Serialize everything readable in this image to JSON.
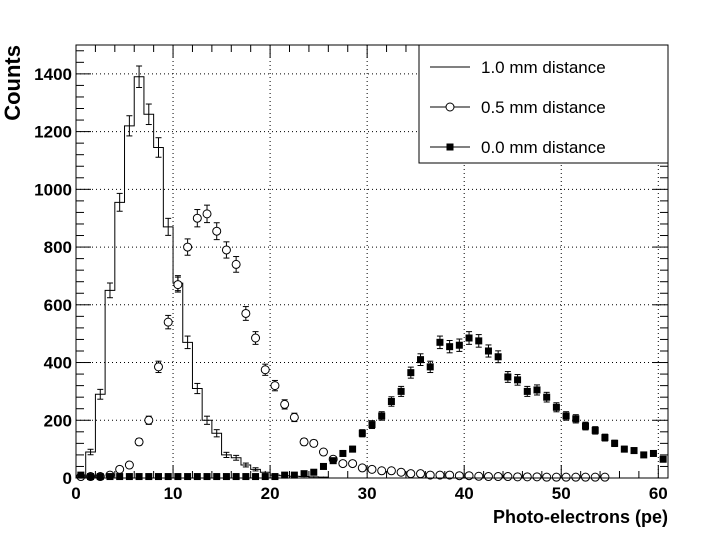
{
  "chart_data": {
    "type": "line",
    "title": "",
    "xlabel": "Photo-electrons (pe)",
    "ylabel": "Counts",
    "xlim": [
      0,
      61
    ],
    "ylim": [
      0,
      1500
    ],
    "bin_width": 1,
    "grid": true,
    "legend_position": "top-right",
    "x_ticks": [
      0,
      10,
      20,
      30,
      40,
      50,
      60
    ],
    "y_ticks": [
      0,
      200,
      400,
      600,
      800,
      1000,
      1200,
      1400
    ],
    "series": [
      {
        "name": "1.0 mm distance",
        "marker": "none",
        "color": "#000000",
        "x": [
          1,
          2,
          3,
          4,
          5,
          6,
          7,
          8,
          9,
          10,
          11,
          12,
          13,
          14,
          15,
          16,
          17,
          18,
          19,
          20,
          21,
          22,
          23,
          24,
          25
        ],
        "y": [
          90,
          290,
          650,
          955,
          1220,
          1390,
          1260,
          1145,
          870,
          675,
          470,
          310,
          200,
          155,
          80,
          70,
          45,
          30,
          20,
          10,
          8,
          6,
          5,
          4,
          3
        ]
      },
      {
        "name": "0.5 mm distance",
        "marker": "open-circle",
        "color": "#000000",
        "x": [
          0,
          1,
          2,
          3,
          4,
          5,
          6,
          7,
          8,
          9,
          10,
          11,
          12,
          13,
          14,
          15,
          16,
          17,
          18,
          19,
          20,
          21,
          22,
          23,
          24,
          25,
          26,
          27,
          28,
          29,
          30,
          31,
          32,
          33,
          34,
          35,
          36,
          37,
          38,
          39,
          40,
          41,
          42,
          43,
          44,
          45,
          46,
          47,
          48,
          49,
          50,
          51,
          52,
          53,
          54
        ],
        "y": [
          5,
          5,
          5,
          10,
          30,
          45,
          125,
          200,
          385,
          540,
          670,
          800,
          900,
          915,
          855,
          790,
          740,
          570,
          485,
          375,
          320,
          255,
          210,
          125,
          120,
          90,
          65,
          50,
          50,
          35,
          30,
          25,
          25,
          20,
          15,
          15,
          10,
          10,
          10,
          8,
          8,
          6,
          5,
          5,
          5,
          4,
          4,
          4,
          3,
          3,
          3,
          3,
          3,
          3,
          3
        ]
      },
      {
        "name": "0.0 mm distance",
        "marker": "filled-square",
        "color": "#000000",
        "x": [
          0,
          1,
          2,
          3,
          4,
          5,
          6,
          7,
          8,
          9,
          10,
          11,
          12,
          13,
          14,
          15,
          16,
          17,
          18,
          19,
          20,
          21,
          22,
          23,
          24,
          25,
          26,
          27,
          28,
          29,
          30,
          31,
          32,
          33,
          34,
          35,
          36,
          37,
          38,
          39,
          40,
          41,
          42,
          43,
          44,
          45,
          46,
          47,
          48,
          49,
          50,
          51,
          52,
          53,
          54,
          55,
          56,
          57,
          58,
          59,
          60
        ],
        "y": [
          10,
          5,
          5,
          5,
          5,
          5,
          5,
          5,
          5,
          5,
          5,
          5,
          5,
          5,
          5,
          5,
          5,
          5,
          5,
          5,
          5,
          10,
          10,
          15,
          20,
          40,
          60,
          85,
          100,
          155,
          185,
          215,
          265,
          300,
          365,
          410,
          385,
          470,
          455,
          460,
          485,
          475,
          440,
          420,
          350,
          340,
          300,
          305,
          280,
          245,
          215,
          205,
          180,
          165,
          140,
          120,
          100,
          95,
          80,
          85,
          65
        ]
      }
    ]
  }
}
